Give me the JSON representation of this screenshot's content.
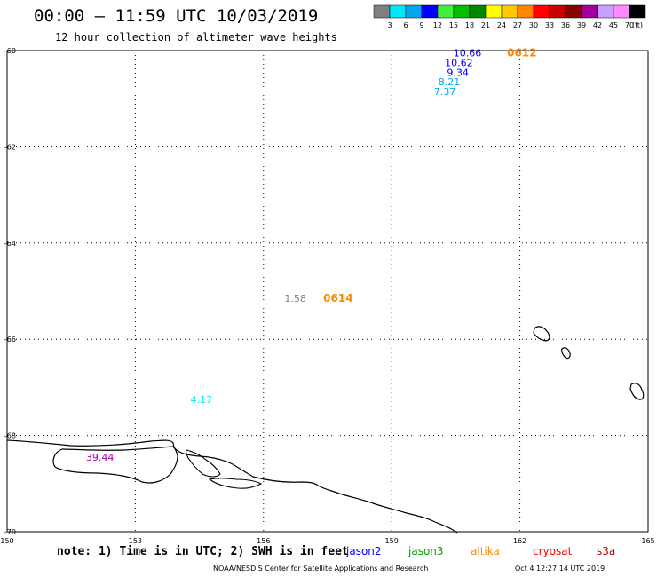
{
  "header": {
    "title": "00:00 – 11:59 UTC 10/03/2019",
    "subtitle": "12 hour collection of altimeter wave heights"
  },
  "colorbar": {
    "labels": [
      "3",
      "6",
      "9",
      "12",
      "15",
      "18",
      "21",
      "24",
      "27",
      "30",
      "33",
      "36",
      "39",
      "42",
      "45",
      "70"
    ],
    "colors": [
      "#808080",
      "#00e8f8",
      "#00a8f0",
      "#0000ff",
      "#40f040",
      "#00c000",
      "#008800",
      "#ffff00",
      "#ffc800",
      "#ff8800",
      "#ff0000",
      "#c80000",
      "#880000",
      "#a000a0",
      "#c8a0ff",
      "#ff88ff",
      "#000000"
    ],
    "unit": "(ft)"
  },
  "map": {
    "lat_ticks": [
      "-60",
      "-62",
      "-64",
      "-66",
      "-68",
      "-70"
    ],
    "lon_ticks": [
      "150",
      "153",
      "156",
      "159",
      "162",
      "165"
    ]
  },
  "chart_data": {
    "type": "map",
    "extent": {
      "lon": [
        150,
        165
      ],
      "lat": [
        -70,
        -60
      ]
    },
    "grid": "dotted",
    "observations": [
      {
        "value": "10.66",
        "lon": 161.1,
        "lat": -60.05,
        "color": "#0000ff"
      },
      {
        "value": "10.62",
        "lon": 160.9,
        "lat": -60.25,
        "color": "#0000ff"
      },
      {
        "value": "9.34",
        "lon": 160.8,
        "lat": -60.45,
        "color": "#0000ff"
      },
      {
        "value": "8.21",
        "lon": 160.6,
        "lat": -60.65,
        "color": "#00a8f0"
      },
      {
        "value": "7.37",
        "lon": 160.5,
        "lat": -60.85,
        "color": "#00a8f0"
      },
      {
        "value": "1.58",
        "lon": 157.0,
        "lat": -65.15,
        "color": "#808080"
      },
      {
        "value": "4.17",
        "lon": 154.8,
        "lat": -67.25,
        "color": "#00e8f8"
      },
      {
        "value": "39.44",
        "lon": 152.5,
        "lat": -68.45,
        "color": "#a000a0"
      }
    ],
    "pass_labels": [
      {
        "text": "0612",
        "lon": 161.7,
        "lat": -60.05,
        "color": "#ff8800"
      },
      {
        "text": "0614",
        "lon": 157.4,
        "lat": -65.15,
        "color": "#ff8800"
      }
    ]
  },
  "footer": {
    "note": "note: 1) Time is in UTC; 2) SWH is in feet",
    "satellites": [
      {
        "name": "jason2",
        "color": "#0000ff"
      },
      {
        "name": "jason3",
        "color": "#00a000"
      },
      {
        "name": "altika",
        "color": "#ff8800"
      },
      {
        "name": "cryosat",
        "color": "#ff0000"
      },
      {
        "name": "s3a",
        "color": "#c00000"
      }
    ],
    "credit": "NOAA/NESDIS Center for Satellite Applications and Research",
    "timestamp": "Oct  4 12:27:14 UTC 2019"
  }
}
